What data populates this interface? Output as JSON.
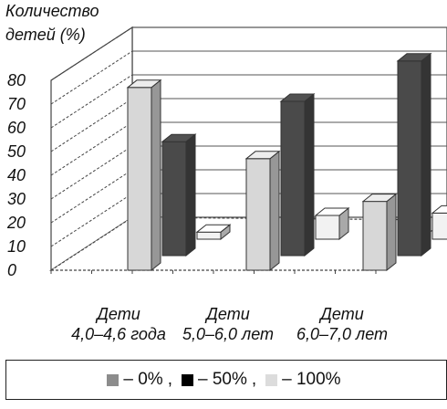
{
  "chart_data": {
    "type": "bar",
    "title": "",
    "ylabel_line1": "Количество",
    "ylabel_line2": "детей (%)",
    "xlabel": "",
    "ylim": [
      0,
      80
    ],
    "yticks": [
      "0",
      "10",
      "20",
      "30",
      "40",
      "50",
      "60",
      "70",
      "80"
    ],
    "grid": true,
    "categories": [
      {
        "line1": "Дети",
        "line2": "4,0–4,6 года"
      },
      {
        "line1": "Дети",
        "line2": "5,0–6,0 лет"
      },
      {
        "line1": "Дети",
        "line2": "6,0–7,0 лет"
      }
    ],
    "series": [
      {
        "name": "– 0%",
        "values": [
          77,
          47,
          29
        ],
        "color": "#d7d7d7"
      },
      {
        "name": "– 50%",
        "values": [
          48,
          65,
          82
        ],
        "color": "#4a4a4a"
      },
      {
        "name": "– 100%",
        "values": [
          3,
          10,
          11
        ],
        "color": "#f2f2f2"
      }
    ],
    "legend_position": "bottom"
  },
  "legend": {
    "items": [
      {
        "label": "– 0%",
        "color": "#8c8c8c",
        "sep": ","
      },
      {
        "label": "– 50%",
        "color": "#000000",
        "sep": ","
      },
      {
        "label": "– 100%",
        "color": "#dcdcdc",
        "sep": ""
      }
    ]
  }
}
